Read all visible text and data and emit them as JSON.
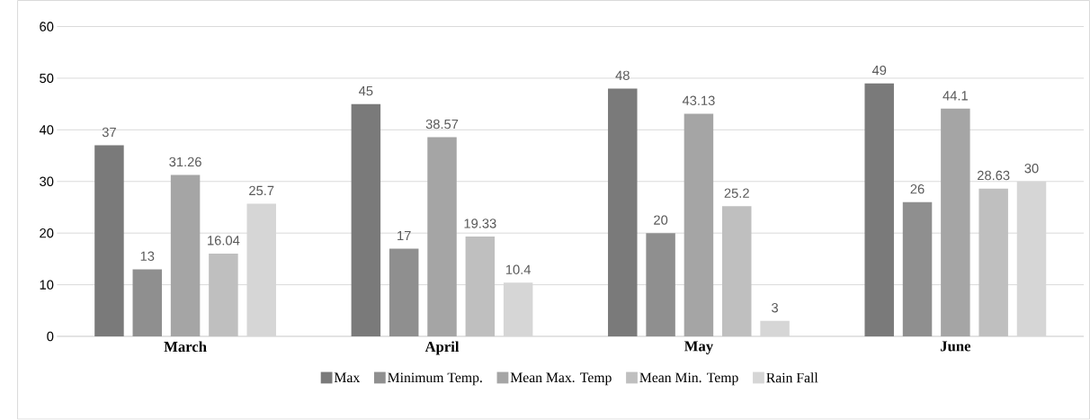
{
  "chart_data": {
    "type": "bar",
    "categories": [
      "March",
      "April",
      "May",
      "June"
    ],
    "series": [
      {
        "name": "Max",
        "color": "#7a7a7a",
        "values": [
          37,
          45,
          48,
          49
        ]
      },
      {
        "name": "Minimum Temp.",
        "color": "#8f8f8f",
        "values": [
          13,
          17,
          20,
          26
        ]
      },
      {
        "name": "Mean Max. Temp",
        "color": "#a5a5a5",
        "values": [
          31.26,
          38.57,
          43.13,
          44.1
        ]
      },
      {
        "name": "Mean Min. Temp",
        "color": "#bfbfbf",
        "values": [
          16.04,
          19.33,
          25.2,
          28.63
        ]
      },
      {
        "name": "Rain Fall",
        "color": "#d6d6d6",
        "values": [
          25.7,
          10.4,
          3,
          30
        ]
      }
    ],
    "ylim": [
      0,
      60
    ],
    "yticks": [
      0,
      10,
      20,
      30,
      40,
      50,
      60
    ],
    "grid": "y",
    "legend": "bottom",
    "data_labels": true
  }
}
